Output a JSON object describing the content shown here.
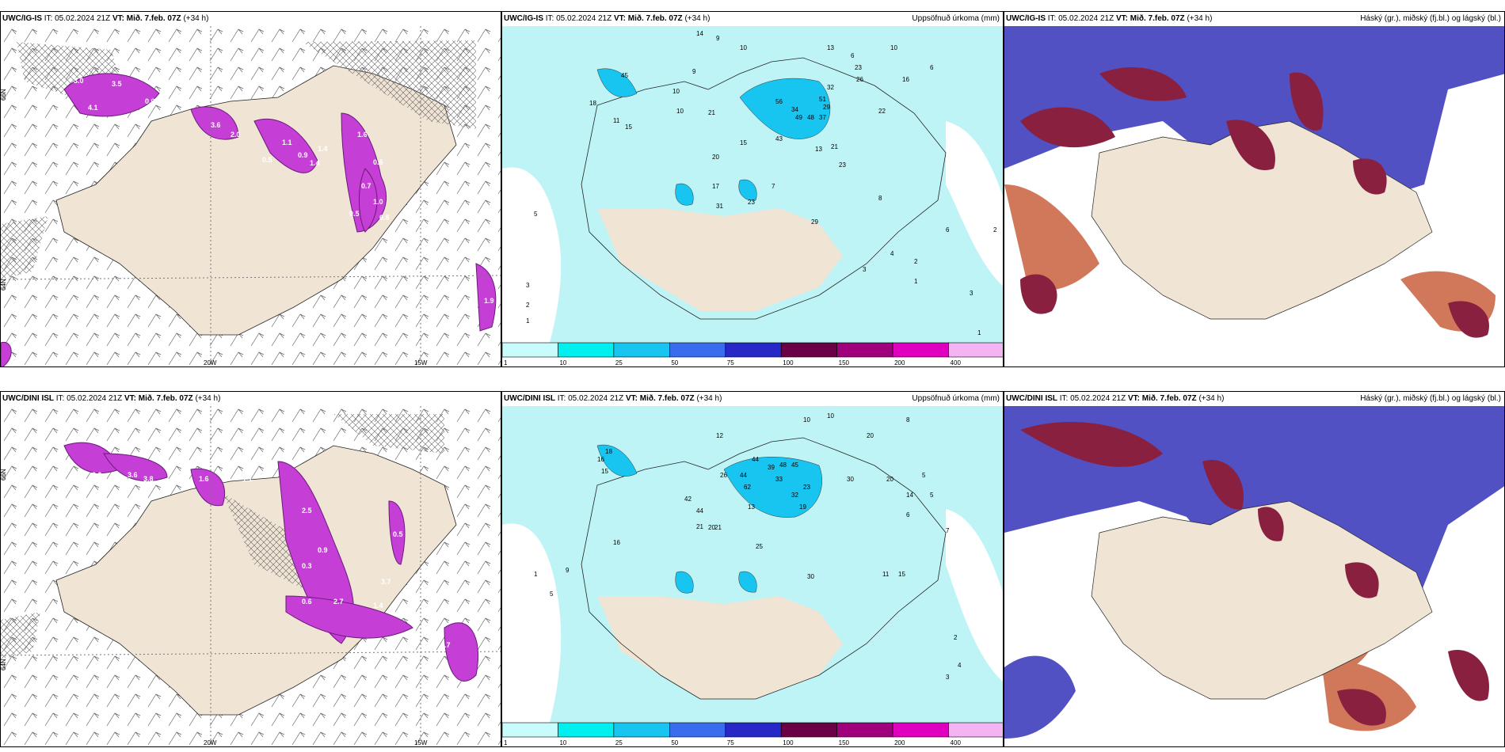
{
  "panels": {
    "p1": {
      "model": "UWC/IG-IS",
      "it_label": "IT:",
      "it_value": "05.02.2024 21Z",
      "vt_label": "VT:",
      "vt_value": "Mið. 7.feb. 07Z",
      "lead": "(+34 h)",
      "title_right": ""
    },
    "p2": {
      "model": "UWC/IG-IS",
      "it_label": "IT:",
      "it_value": "05.02.2024 21Z",
      "vt_label": "VT:",
      "vt_value": "Mið. 7.feb. 07Z",
      "lead": "(+34 h)",
      "title_right": "Uppsöfnuð úrkoma (mm)"
    },
    "p3": {
      "model": "UWC/IG-IS",
      "it_label": "IT:",
      "it_value": "05.02.2024 21Z",
      "vt_label": "VT:",
      "vt_value": "Mið. 7.feb. 07Z",
      "lead": "(+34 h)",
      "title_right": "Háský (gr.), miðský (fj.bl.) og lágský (bl.)"
    },
    "p4": {
      "model": "UWC/DINI ISL",
      "it_label": "IT:",
      "it_value": "05.02.2024 21Z",
      "vt_label": "VT:",
      "vt_value": "Mið. 7.feb. 07Z",
      "lead": "(+34 h)",
      "title_right": ""
    },
    "p5": {
      "model": "UWC/DINI ISL",
      "it_label": "IT:",
      "it_value": "05.02.2024 21Z",
      "vt_label": "VT:",
      "vt_value": "Mið. 7.feb. 07Z",
      "lead": "(+34 h)",
      "title_right": "Uppsöfnuð úrkoma (mm)"
    },
    "p6": {
      "model": "UWC/DINI ISL",
      "it_label": "IT:",
      "it_value": "05.02.2024 21Z",
      "vt_label": "VT:",
      "vt_value": "Mið. 7.feb. 07Z",
      "lead": "(+34 h)",
      "title_right": "Háský (gr.), miðský (fj.bl.) og lágský (bl.)"
    }
  },
  "axis_labels": {
    "lon_20w": "20W",
    "lon_15w": "15W",
    "lat_66n": "66N",
    "lat_64n": "64N"
  },
  "legend": {
    "ticks": [
      "1",
      "10",
      "25",
      "50",
      "75",
      "100",
      "150",
      "200",
      "400"
    ],
    "colors": [
      "#c8fbfb",
      "#00f0f0",
      "#18c4f0",
      "#3a6cf0",
      "#2828c8",
      "#6a0046",
      "#a0007c",
      "#e000c0",
      "#f4b4f4"
    ]
  },
  "precip_values": {
    "top": [
      "14",
      "9",
      "10",
      "13",
      "6",
      "10",
      "23",
      "26",
      "6",
      "16",
      "45",
      "10",
      "22",
      "9",
      "10",
      "18",
      "11",
      "15",
      "56",
      "34",
      "49",
      "48",
      "51",
      "37",
      "29",
      "32",
      "21",
      "20",
      "13",
      "43",
      "15",
      "21",
      "23",
      "17",
      "7",
      "31",
      "23",
      "29",
      "6",
      "8",
      "4",
      "3",
      "2",
      "1",
      "5",
      "3",
      "2",
      "1",
      "3",
      "1",
      "2"
    ],
    "bottom": [
      "10",
      "12",
      "10",
      "20",
      "8",
      "16",
      "15",
      "14",
      "44",
      "13",
      "26",
      "20",
      "39",
      "48",
      "45",
      "62",
      "44",
      "33",
      "32",
      "30",
      "42",
      "44",
      "21",
      "20",
      "21",
      "19",
      "23",
      "25",
      "30",
      "11",
      "15",
      "5",
      "5",
      "6",
      "7",
      "4",
      "3",
      "2",
      "1",
      "5",
      "9",
      "16",
      "18"
    ]
  },
  "snow_values": {
    "top": [
      "3.0",
      "3.5",
      "0.6",
      "4.1",
      "3.6",
      "2.0",
      "1.1",
      "0.9",
      "1.4",
      "0.5",
      "1.6",
      "0.6",
      "0.7",
      "1.0",
      "0.5",
      "0.8",
      "1.4",
      "1.9"
    ],
    "bottom": [
      "2.0",
      "3.6",
      "3.8",
      "1.6",
      "1.1",
      "2.5",
      "0.9",
      "0.3",
      "0.6",
      "2.7",
      "1.4",
      "3.7",
      "0.5",
      "0.7",
      "1.7"
    ]
  },
  "colors": {
    "land": "#f0e4d4",
    "cyan": "#bff4f6",
    "magenta": "#c53fd6",
    "navy_cloud": "#5151c3",
    "maroon": "#8a2040",
    "orange_cloud": "#d2785a"
  }
}
